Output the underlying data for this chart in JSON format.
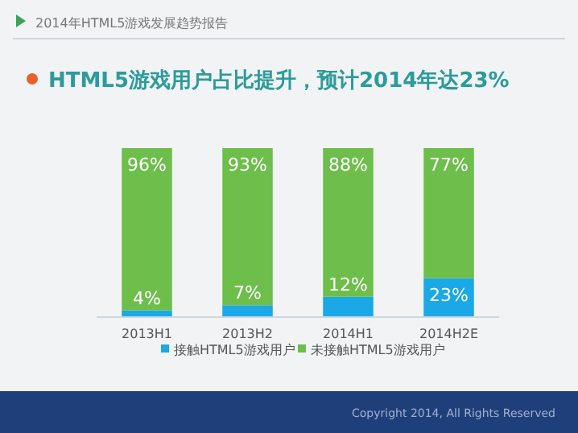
{
  "chart_data": {
    "type": "bar",
    "stacked": true,
    "subtitle": "2014年HTML5游戏发展趋势报告",
    "title": "HTML5游戏用户占比提升，预计2014年达23%",
    "categories": [
      "2013H1",
      "2013H2",
      "2014H1",
      "2014H2E"
    ],
    "series": [
      {
        "name": "接触HTML5游戏用户",
        "color": "#1ba8e6",
        "values": [
          4,
          7,
          12,
          23
        ],
        "value_labels": [
          "4%",
          "7%",
          "12%",
          "23%"
        ]
      },
      {
        "name": "未接触HTML5游戏用户",
        "color": "#6dbe4b",
        "values": [
          96,
          93,
          88,
          77
        ],
        "value_labels": [
          "96%",
          "93%",
          "88%",
          "77%"
        ]
      }
    ],
    "legend": "bottom",
    "annotations": [
      "Copyright 2014, All Rights Reserved"
    ]
  }
}
